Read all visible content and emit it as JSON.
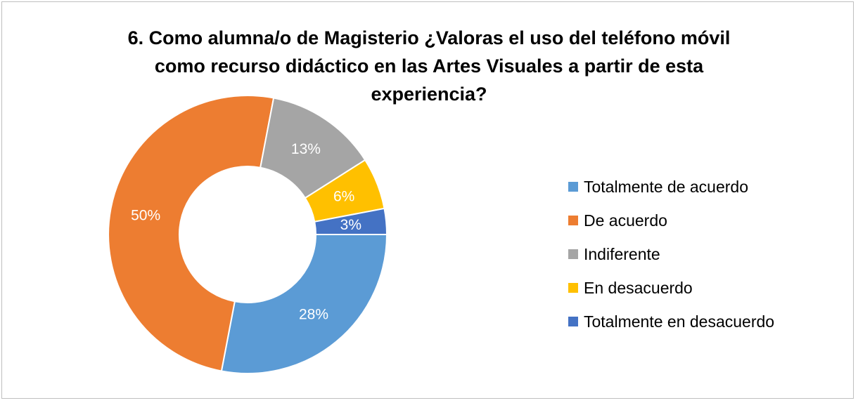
{
  "chart_data": {
    "type": "pie",
    "donut": true,
    "title_lines": [
      "6. Como alumna/o de Magisterio ¿Valoras el uso del teléfono móvil",
      "como recurso didáctico en las Artes Visuales a partir de esta",
      "experiencia?"
    ],
    "legend_position": "right",
    "series": [
      {
        "name": "Totalmente de acuerdo",
        "value": 28,
        "label": "28%",
        "color": "#5B9BD5"
      },
      {
        "name": "De acuerdo",
        "value": 50,
        "label": "50%",
        "color": "#ED7D31"
      },
      {
        "name": "Indiferente",
        "value": 13,
        "label": "13%",
        "color": "#A5A5A5"
      },
      {
        "name": "En desacuerdo",
        "value": 6,
        "label": "6%",
        "color": "#FFC000"
      },
      {
        "name": "Totalmente en desacuerdo",
        "value": 3,
        "label": "3%",
        "color": "#4472C4"
      }
    ]
  }
}
